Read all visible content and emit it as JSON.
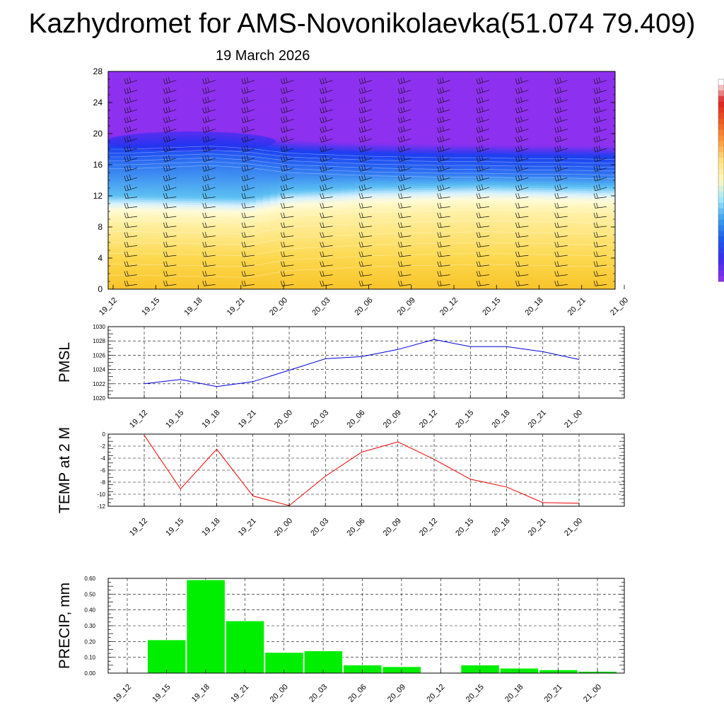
{
  "title": "Kazhydromet for AMS-Novonikolaevka(51.074 79.409)",
  "subtitle": "19 March 2026",
  "time_labels": [
    "19_12",
    "19_15",
    "19_18",
    "19_21",
    "20_00",
    "20_03",
    "20_06",
    "20_09",
    "20_12",
    "20_15",
    "20_18",
    "20_21",
    "21_00"
  ],
  "colors": {
    "pmsl_line": "#0000dd",
    "temp_line": "#ee0000",
    "precip_bar": "#00ee00",
    "cross_top": "#8e30f0",
    "cross_mid": "#1a3ef0",
    "cross_bottom": "#f8c42a"
  },
  "chart_data": [
    {
      "type": "heatmap",
      "name": "cross-section",
      "x": [
        "19_12",
        "19_15",
        "19_18",
        "19_21",
        "20_00",
        "20_03",
        "20_06",
        "20_09",
        "20_12",
        "20_15",
        "20_18",
        "20_21",
        "21_00"
      ],
      "ylim": [
        0,
        28
      ],
      "yticks": [
        0,
        4,
        8,
        12,
        16,
        20,
        24,
        28
      ],
      "freezing_level": [
        10.2,
        10.1,
        10.0,
        9.9,
        10.8,
        11.0,
        11.3,
        11.4,
        11.5,
        11.6,
        11.5,
        11.4,
        11.3
      ],
      "tropopause": [
        18.5,
        18.7,
        18.9,
        18.6,
        18.0,
        17.8,
        17.6,
        17.5,
        17.4,
        17.4,
        17.3,
        17.3,
        17.2
      ],
      "colorbar_colors": [
        "#ffffff",
        "#e02020",
        "#f05a1e",
        "#ff9a3c",
        "#ffe080",
        "#fff7c0",
        "#9ee8ff",
        "#3aa0f0",
        "#1a5cf0",
        "#3a2cf0",
        "#8a30f0"
      ],
      "grid": false,
      "wind_barbs": true
    },
    {
      "type": "line",
      "name": "PMSL",
      "ylabel": "PMSL",
      "categories": [
        "19_12",
        "19_15",
        "19_18",
        "19_21",
        "20_00",
        "20_03",
        "20_06",
        "20_09",
        "20_12",
        "20_15",
        "20_18",
        "20_21",
        "21_00"
      ],
      "values": [
        1022.0,
        1022.6,
        1021.6,
        1022.3,
        1023.9,
        1025.5,
        1025.8,
        1026.8,
        1028.2,
        1027.2,
        1027.2,
        1026.5,
        1025.4
      ],
      "ylim": [
        1020,
        1030
      ],
      "yticks": [
        1020,
        1022,
        1024,
        1026,
        1028,
        1030
      ],
      "grid": true
    },
    {
      "type": "line",
      "name": "TEMP",
      "ylabel": "TEMP at 2 M",
      "categories": [
        "19_12",
        "19_15",
        "19_18",
        "19_21",
        "20_00",
        "20_03",
        "20_06",
        "20_09",
        "20_12",
        "20_15",
        "20_18",
        "20_21",
        "21_00"
      ],
      "values": [
        -0.2,
        -9.1,
        -2.5,
        -10.3,
        -11.9,
        -7.0,
        -3.0,
        -1.3,
        -4.2,
        -7.5,
        -8.8,
        -11.4,
        -11.5
      ],
      "ylim": [
        -12,
        0
      ],
      "yticks": [
        0,
        -2,
        -4,
        -6,
        -8,
        -10,
        -12
      ],
      "grid": true
    },
    {
      "type": "bar",
      "name": "PRECIP",
      "ylabel": "PRECIP, mm",
      "categories": [
        "19_12",
        "19_15",
        "19_18",
        "19_21",
        "20_00",
        "20_03",
        "20_06",
        "20_09",
        "20_12",
        "20_15",
        "20_18",
        "20_21",
        "21_00"
      ],
      "values": [
        0.0,
        0.21,
        0.59,
        0.33,
        0.13,
        0.14,
        0.05,
        0.04,
        0.0,
        0.05,
        0.03,
        0.02,
        0.01
      ],
      "ylim": [
        0,
        0.6
      ],
      "yticks": [
        "0.00",
        "0.10",
        "0.20",
        "0.30",
        "0.40",
        "0.50",
        "0.60"
      ],
      "grid": true
    }
  ]
}
